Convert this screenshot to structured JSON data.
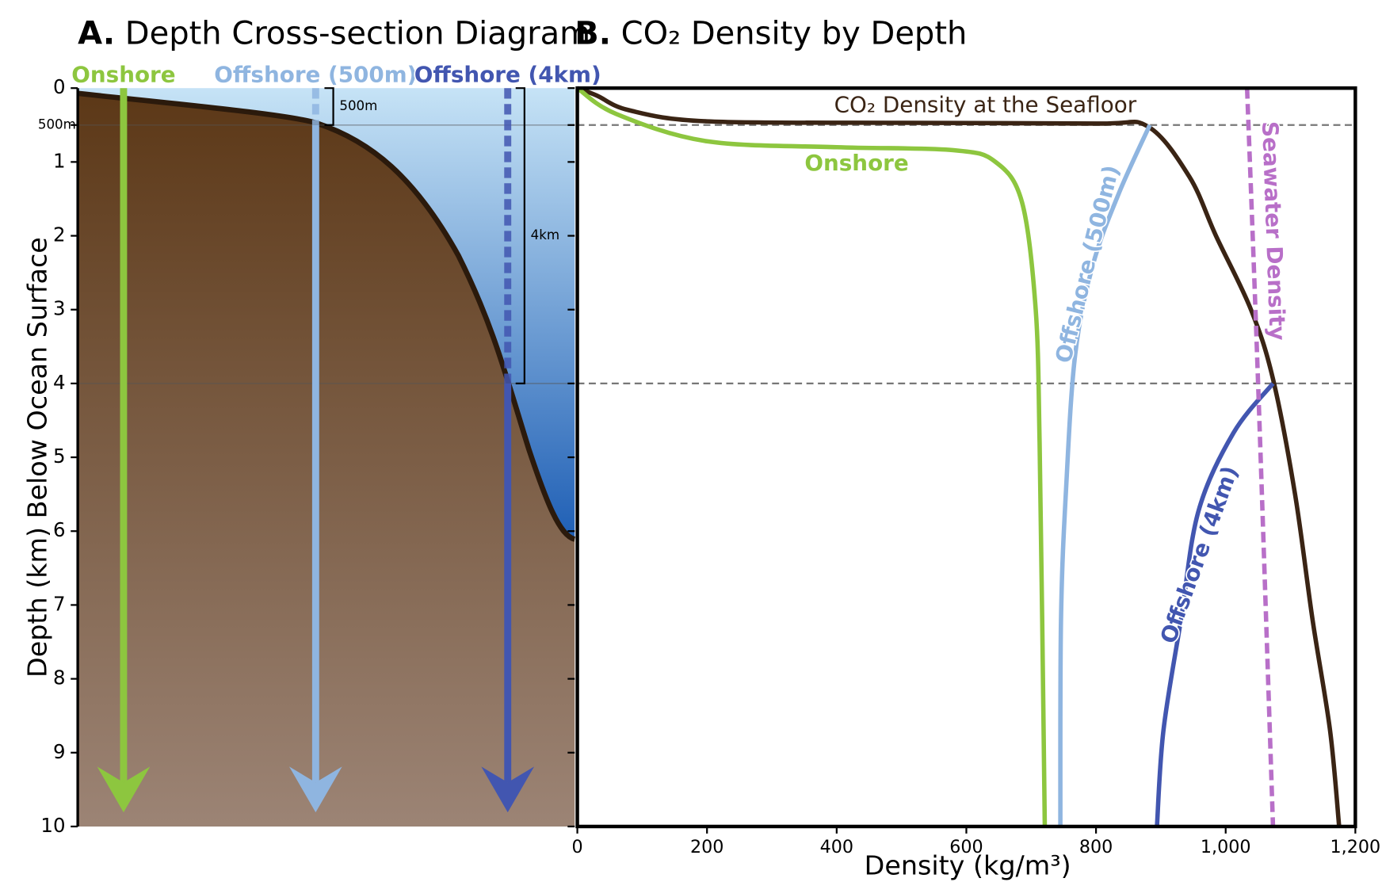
{
  "chart_data": [
    {
      "type": "cross-section",
      "panel": "A.",
      "title": "Depth Cross-section Diagram",
      "ylabel": "Depth (km) Below Ocean Surface",
      "ylim": [
        0,
        10
      ],
      "yticks": [
        0,
        {
          "value": 0.5,
          "label": "500m"
        },
        1,
        2,
        3,
        4,
        5,
        6,
        7,
        8,
        9,
        10
      ],
      "hlines": [
        0.5,
        4
      ],
      "wells": [
        {
          "name": "Onshore",
          "color": "#8dc63f",
          "seafloor_depth": 0
        },
        {
          "name": "Offshore (500m)",
          "color": "#8fb5e0",
          "seafloor_depth": 0.5
        },
        {
          "name": "Offshore (4km)",
          "color": "#4256b0",
          "seafloor_depth": 4
        }
      ],
      "brackets": [
        {
          "label": "500m",
          "depth": 0.5
        },
        {
          "label": "4km",
          "depth": 4
        }
      ]
    },
    {
      "type": "line",
      "panel": "B.",
      "title": "CO₂ Density by Depth",
      "xlabel": "Density (kg/m³)",
      "xlim": [
        0,
        1200
      ],
      "ylim": [
        0,
        10
      ],
      "xticks": [
        0,
        200,
        400,
        600,
        800,
        {
          "value": 1000,
          "label": "1,000"
        },
        {
          "value": 1200,
          "label": "1,200"
        }
      ],
      "hlines": [
        0.5,
        4
      ],
      "series": [
        {
          "name": "CO₂ Density at the Seafloor",
          "color": "#3a2414",
          "dashed": false,
          "depth": [
            0,
            0.1,
            0.3,
            0.45,
            0.47,
            0.48,
            0.52,
            1.2,
            2.0,
            3.0,
            3.94,
            5.5,
            7.2,
            8.7,
            10
          ],
          "values": [
            0,
            30,
            80,
            200,
            500,
            800,
            880,
            944,
            985,
            1039,
            1073,
            1107,
            1134,
            1161,
            1175
          ]
        },
        {
          "name": "Onshore",
          "color": "#8dc63f",
          "dashed": false,
          "depth": [
            0,
            0.35,
            0.72,
            0.8,
            0.84,
            1.0,
            1.55,
            3,
            4.8,
            7.2,
            10
          ],
          "values": [
            0,
            60,
            200,
            400,
            580,
            645,
            686,
            707,
            713,
            717,
            721
          ]
        },
        {
          "name": "Offshore (500m)",
          "color": "#8fb5e0",
          "dashed": false,
          "depth": [
            0.5,
            1.43,
            2.4,
            3.6,
            5.4,
            7.2,
            10
          ],
          "values": [
            883,
            835,
            795,
            768,
            754,
            746,
            745
          ]
        },
        {
          "name": "Offshore (4km)",
          "color": "#4256b0",
          "dashed": false,
          "depth": [
            4,
            4.67,
            5.73,
            7.2,
            8.7,
            10
          ],
          "values": [
            1073,
            1012,
            958,
            931,
            904,
            894
          ]
        },
        {
          "name": "Seawater Density",
          "color": "#b86fc8",
          "dashed": true,
          "depth": [
            0,
            4,
            10
          ],
          "values": [
            1033,
            1050,
            1073
          ]
        }
      ]
    }
  ]
}
